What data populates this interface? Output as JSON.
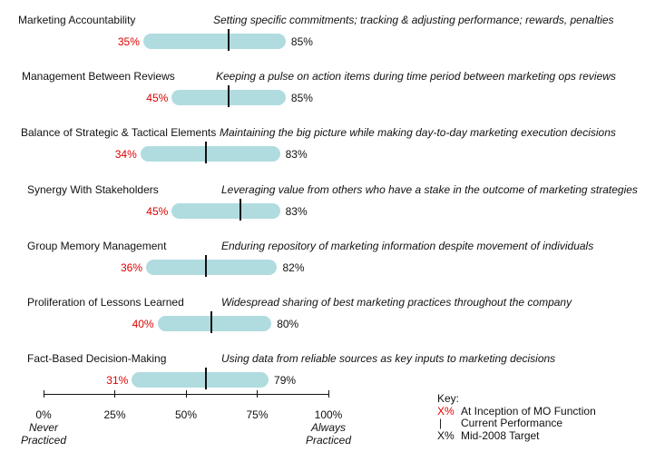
{
  "colors": {
    "bar": "#b0dce0",
    "start_pct": "#e00000",
    "marker": "#111111"
  },
  "chart_data": {
    "type": "bar",
    "xlim": [
      0,
      100
    ],
    "x_ticks": [
      "0%",
      "25%",
      "50%",
      "75%",
      "100%"
    ],
    "x_caption_left": [
      "Never",
      "Practiced"
    ],
    "x_caption_right": [
      "Always",
      "Practiced"
    ],
    "rows": [
      {
        "label": "Marketing Accountability",
        "description": "Setting specific commitments; tracking & adjusting performance; rewards, penalties",
        "start": 35,
        "start_label": "35%",
        "target": 85,
        "target_label": "85%",
        "current": 65
      },
      {
        "label": "Management Between Reviews",
        "description": "Keeping a pulse on action items during time period between marketing ops reviews",
        "start": 45,
        "start_label": "45%",
        "target": 85,
        "target_label": "85%",
        "current": 65
      },
      {
        "label": "Balance of Strategic & Tactical Elements",
        "description": "Maintaining the big picture while making day-to-day marketing execution decisions",
        "start": 34,
        "start_label": "34%",
        "target": 83,
        "target_label": "83%",
        "current": 57
      },
      {
        "label": "Synergy With Stakeholders",
        "description": "Leveraging value from others who have a stake in the outcome of marketing strategies",
        "start": 45,
        "start_label": "45%",
        "target": 83,
        "target_label": "83%",
        "current": 69
      },
      {
        "label": "Group Memory Management",
        "description": "Enduring repository of marketing information despite movement of individuals",
        "start": 36,
        "start_label": "36%",
        "target": 82,
        "target_label": "82%",
        "current": 57
      },
      {
        "label": "Proliferation of Lessons Learned",
        "description": "Widespread sharing of best marketing practices throughout the company",
        "start": 40,
        "start_label": "40%",
        "target": 80,
        "target_label": "80%",
        "current": 59
      },
      {
        "label": "Fact-Based Decision-Making",
        "description": "Using data from reliable sources as key inputs to marketing decisions",
        "start": 31,
        "start_label": "31%",
        "target": 79,
        "target_label": "79%",
        "current": 57
      }
    ]
  },
  "key": {
    "title": "Key:",
    "items": [
      {
        "symbol": "X%",
        "text": "At Inception of MO Function",
        "red": true
      },
      {
        "symbol": "|",
        "text": "Current Performance",
        "red": false
      },
      {
        "symbol": "X%",
        "text": "Mid-2008 Target",
        "red": false
      }
    ]
  }
}
